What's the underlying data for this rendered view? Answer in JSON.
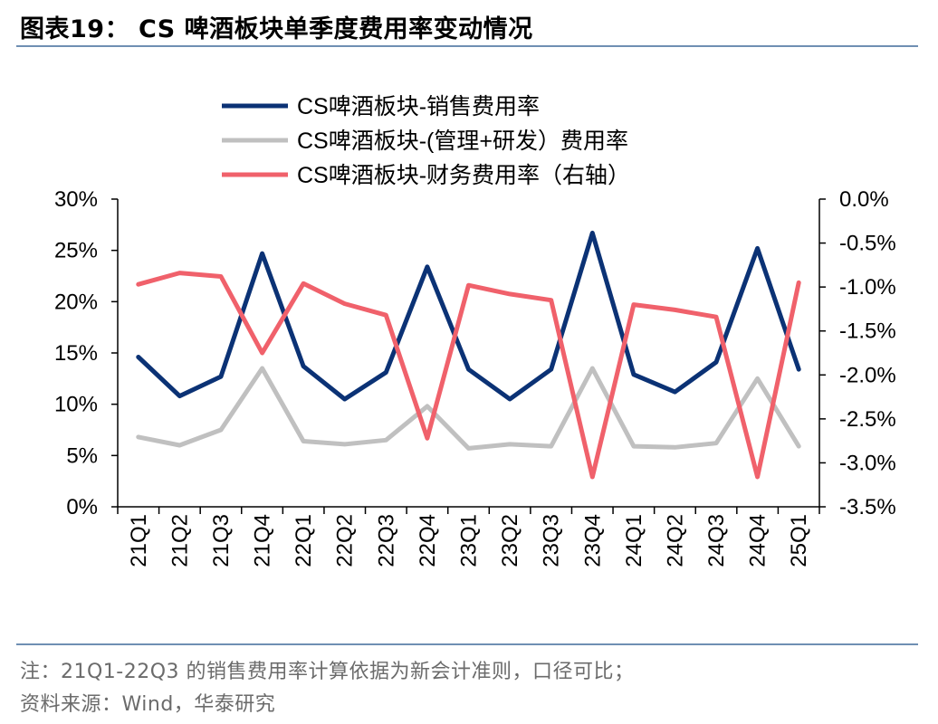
{
  "title": "图表19： CS 啤酒板块单季度费用率变动情况",
  "footnote": "注：21Q1-22Q3 的销售费用率计算依据为新会计准则，口径可比；",
  "source": "资料来源：Wind，华泰研究",
  "colors": {
    "series1": "#0b3275",
    "series2": "#c0c0c0",
    "series3": "#f0616b"
  },
  "chart_data": {
    "type": "line",
    "categories": [
      "21Q1",
      "21Q2",
      "21Q3",
      "21Q4",
      "22Q1",
      "22Q2",
      "22Q3",
      "22Q4",
      "23Q1",
      "23Q2",
      "23Q3",
      "23Q4",
      "24Q1",
      "24Q2",
      "24Q3",
      "24Q4",
      "25Q1"
    ],
    "left_axis": {
      "ylim": [
        0,
        30
      ],
      "ticks": [
        0,
        5,
        10,
        15,
        20,
        25,
        30
      ],
      "tick_labels": [
        "0%",
        "5%",
        "10%",
        "15%",
        "20%",
        "25%",
        "30%"
      ]
    },
    "right_axis": {
      "ylim": [
        -3.5,
        0
      ],
      "ticks": [
        0.0,
        -0.5,
        -1.0,
        -1.5,
        -2.0,
        -2.5,
        -3.0,
        -3.5
      ],
      "tick_labels": [
        "0.0%",
        "-0.5%",
        "-1.0%",
        "-1.5%",
        "-2.0%",
        "-2.5%",
        "-3.0%",
        "-3.5%"
      ]
    },
    "legend_position": "top",
    "series": [
      {
        "name": "CS啤酒板块-销售费用率",
        "axis": "left",
        "color": "#0b3275",
        "values": [
          14.6,
          10.8,
          12.7,
          24.7,
          13.7,
          10.5,
          13.1,
          23.4,
          13.4,
          10.5,
          13.4,
          26.7,
          12.9,
          11.2,
          14.1,
          25.2,
          13.4
        ]
      },
      {
        "name": "CS啤酒板块-(管理+研发）费用率",
        "axis": "left",
        "color": "#c0c0c0",
        "values": [
          6.8,
          6.0,
          7.5,
          13.5,
          6.4,
          6.1,
          6.5,
          9.8,
          5.7,
          6.1,
          5.9,
          13.5,
          5.9,
          5.8,
          6.2,
          12.5,
          5.9
        ]
      },
      {
        "name": "CS啤酒板块-财务费用率（右轴）",
        "axis": "right",
        "color": "#f0616b",
        "values": [
          -0.97,
          -0.84,
          -0.88,
          -1.75,
          -0.96,
          -1.19,
          -1.32,
          -2.72,
          -0.98,
          -1.08,
          -1.15,
          -3.16,
          -1.2,
          -1.26,
          -1.34,
          -3.16,
          -0.95
        ]
      }
    ]
  }
}
